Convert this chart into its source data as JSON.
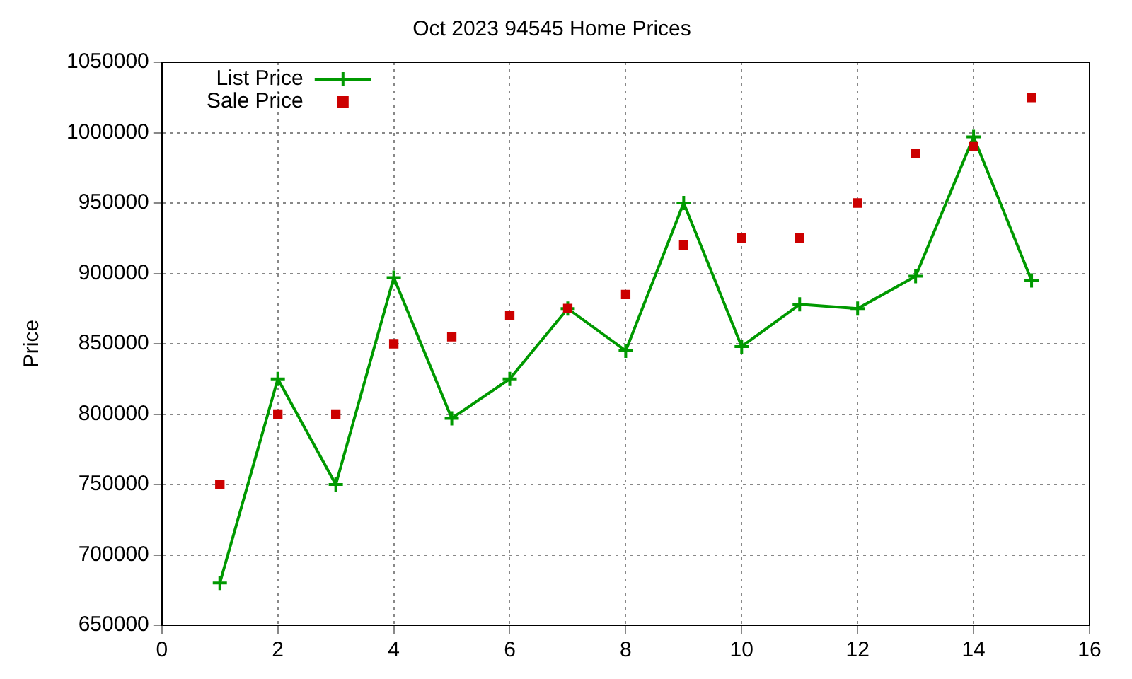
{
  "chart_data": {
    "type": "line",
    "title": "Oct 2023 94545 Home Prices",
    "ylabel": "Price",
    "x": [
      1,
      2,
      3,
      4,
      5,
      6,
      7,
      8,
      9,
      10,
      11,
      12,
      13,
      14,
      15
    ],
    "series": [
      {
        "name": "List Price",
        "color": "#009900",
        "marker": "cross",
        "values": [
          680000,
          825000,
          750000,
          897000,
          797000,
          825000,
          875000,
          845000,
          950000,
          848000,
          878000,
          875000,
          898000,
          997000,
          895000
        ]
      },
      {
        "name": "Sale Price",
        "type": "scatter",
        "color": "#cc0000",
        "marker": "square",
        "values": [
          750000,
          800000,
          800000,
          850000,
          855000,
          870000,
          875000,
          885000,
          920000,
          925000,
          925000,
          950000,
          985000,
          990000,
          1025000
        ]
      }
    ],
    "xlim": [
      0,
      16
    ],
    "xticks": [
      0,
      2,
      4,
      6,
      8,
      10,
      12,
      14,
      16
    ],
    "ylim": [
      650000,
      1050000
    ],
    "yticks": [
      650000,
      700000,
      750000,
      800000,
      850000,
      900000,
      950000,
      1000000,
      1050000
    ],
    "grid": true,
    "legend": "top left",
    "line_style": "solid"
  }
}
